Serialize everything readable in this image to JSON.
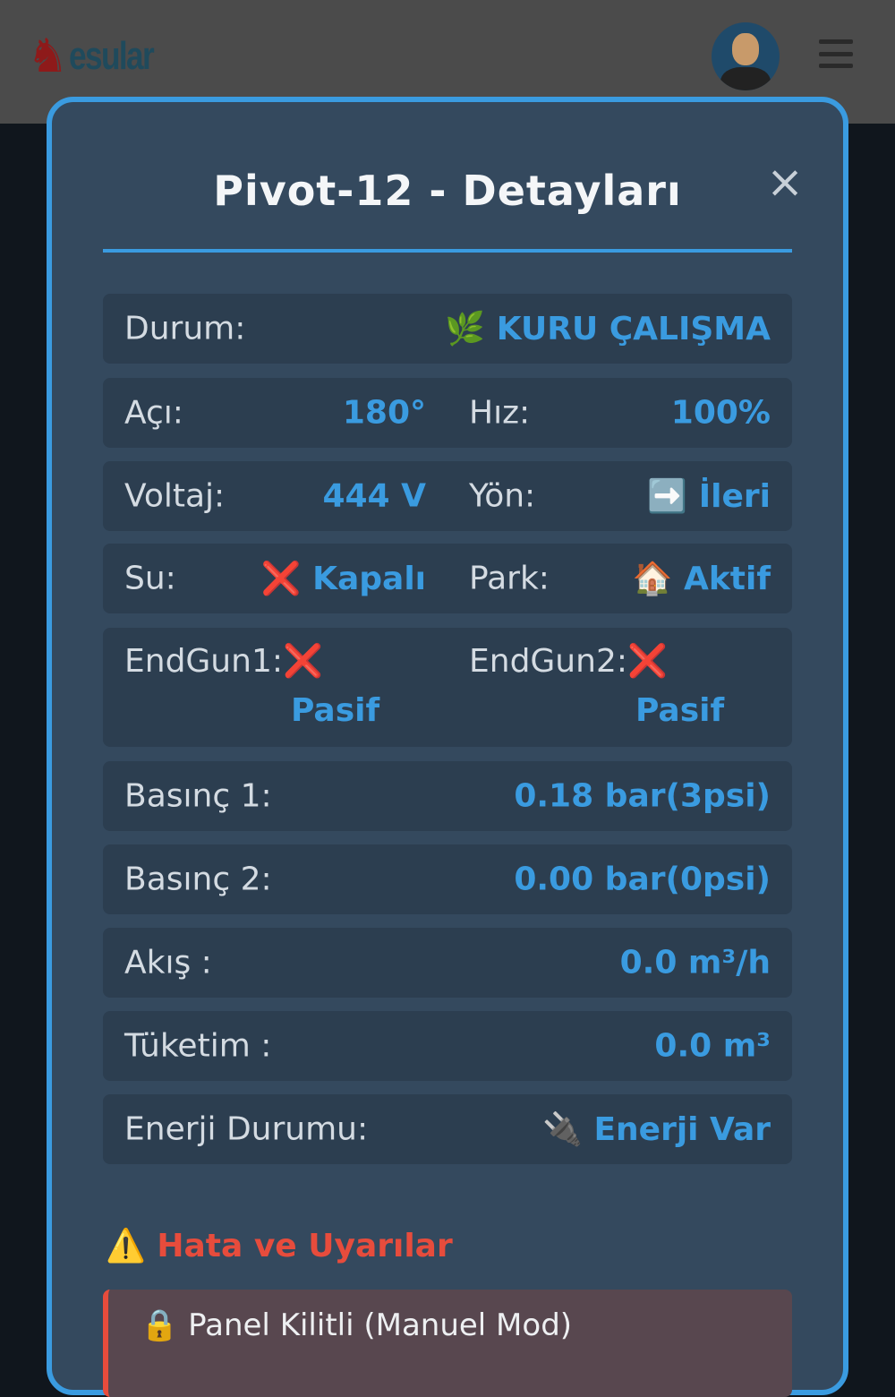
{
  "header": {
    "logo_text": "esular",
    "logo_icon": "goat-icon",
    "avatar": "user-avatar",
    "menu_icon": "hamburger-icon"
  },
  "modal": {
    "title": "Pivot-12 - Detayları",
    "close": "×"
  },
  "colors": {
    "accent": "#3a9be0",
    "panel": "#34495e",
    "row": "#2c3e50",
    "error": "#e74c3c"
  },
  "rows": {
    "durum": {
      "label": "Durum:",
      "icon": "🌿",
      "value": "KURU ÇALIŞMA"
    },
    "aci": {
      "label": "Açı:",
      "value": "180°"
    },
    "hiz": {
      "label": "Hız:",
      "value": "100%"
    },
    "voltaj": {
      "label": "Voltaj:",
      "value": "444 V"
    },
    "yon": {
      "label": "Yön:",
      "icon": "➡️",
      "value": "İleri"
    },
    "su": {
      "label": "Su:",
      "icon": "❌",
      "value": "Kapalı"
    },
    "park": {
      "label": "Park:",
      "icon": "🏠",
      "value": "Aktif"
    },
    "endgun1": {
      "label": "EndGun1:",
      "icon": "❌",
      "value": "Pasif"
    },
    "endgun2": {
      "label": "EndGun2:",
      "icon": "❌",
      "value": "Pasif"
    },
    "basinc1": {
      "label": "Basınç 1:",
      "value": "0.18 bar(3psi)"
    },
    "basinc2": {
      "label": "Basınç 2:",
      "value": "0.00 bar(0psi)"
    },
    "akis": {
      "label": "Akış :",
      "value": "0.0 m³/h"
    },
    "tuketim": {
      "label": "Tüketim :",
      "value": "0.0 m³"
    },
    "enerji": {
      "label": "Enerji Durumu:",
      "icon": "🔌",
      "value": "Enerji Var"
    }
  },
  "warnings": {
    "icon": "⚠️",
    "title": "Hata ve Uyarılar",
    "items": [
      {
        "icon": "🔒",
        "text": "Panel Kilitli (Manuel Mod)"
      }
    ]
  }
}
